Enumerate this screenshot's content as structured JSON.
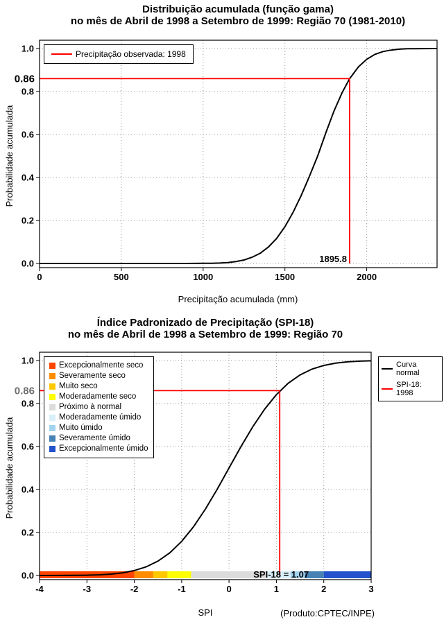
{
  "page": {
    "background": "#FFFFFF"
  },
  "chart_data": [
    {
      "id": "gamma-cdf",
      "type": "line",
      "title": "Distribuição acumulada (função gama)",
      "subtitle": "no mês de Abril de 1998 a Setembro de 1999: Região 70 (1981-2010)",
      "xlabel": "Precipitação acumulada (mm)",
      "ylabel": "Probabilidade acumulada",
      "xlim": [
        0,
        2430
      ],
      "ylim": [
        0,
        1
      ],
      "xticks": [
        0,
        500,
        1000,
        1500,
        2000
      ],
      "yticks": [
        0,
        0.2,
        0.4,
        0.6,
        0.8,
        1
      ],
      "ytick_labels": [
        "0.0",
        "0.2",
        "0.4",
        "0.6",
        "0.8",
        "1.0"
      ],
      "grid": true,
      "legend": {
        "position": "top-left",
        "items": [
          {
            "label": "Precipitação observada: 1998",
            "color": "#FF0000",
            "swatch": "line"
          }
        ]
      },
      "series": [
        {
          "name": "gamma-cdf-curve",
          "color": "#000000",
          "points": [
            [
              0,
              0
            ],
            [
              200,
              0
            ],
            [
              400,
              0
            ],
            [
              600,
              0
            ],
            [
              800,
              0
            ],
            [
              900,
              0
            ],
            [
              1000,
              0.001
            ],
            [
              1050,
              0.001
            ],
            [
              1100,
              0.002
            ],
            [
              1150,
              0.004
            ],
            [
              1200,
              0.009
            ],
            [
              1250,
              0.016
            ],
            [
              1300,
              0.029
            ],
            [
              1350,
              0.048
            ],
            [
              1400,
              0.077
            ],
            [
              1450,
              0.117
            ],
            [
              1500,
              0.171
            ],
            [
              1550,
              0.238
            ],
            [
              1600,
              0.317
            ],
            [
              1650,
              0.406
            ],
            [
              1700,
              0.5
            ],
            [
              1750,
              0.608
            ],
            [
              1800,
              0.709
            ],
            [
              1850,
              0.795
            ],
            [
              1895.8,
              0.86
            ],
            [
              1950,
              0.915
            ],
            [
              2000,
              0.95
            ],
            [
              2050,
              0.973
            ],
            [
              2100,
              0.986
            ],
            [
              2150,
              0.993
            ],
            [
              2200,
              0.997
            ],
            [
              2250,
              0.999
            ],
            [
              2300,
              0.9995
            ],
            [
              2350,
              0.9998
            ],
            [
              2430,
              1
            ]
          ]
        }
      ],
      "annotation": {
        "prob": 0.86,
        "prob_label": "0.86",
        "prob_label_color": "#000000",
        "value": 1895.8,
        "value_label": "1895.8",
        "line_color": "#FF0000"
      }
    },
    {
      "id": "spi-cdf",
      "type": "line",
      "title": "Índice Padronizado de Precipitação (SPI-18)",
      "subtitle": "no mês de Abril de 1998 a Setembro de 1999: Região 70",
      "xlabel": "SPI",
      "ylabel": "Probabilidade acumulada",
      "credit": "(Produto:CPTEC/INPE)",
      "xlim": [
        -4,
        3
      ],
      "ylim": [
        0,
        1
      ],
      "xticks": [
        -4,
        -3,
        -2,
        -1,
        0,
        1,
        2,
        3
      ],
      "yticks": [
        0,
        0.2,
        0.4,
        0.6,
        0.8,
        1
      ],
      "ytick_labels": [
        "0.0",
        "0.2",
        "0.4",
        "0.6",
        "0.8",
        "1.0"
      ],
      "grid": true,
      "categories": [
        {
          "label": "Excepcionalmente seco",
          "color": "#FF4500",
          "from": -4,
          "to": -2
        },
        {
          "label": "Severamente seco",
          "color": "#FF8C00",
          "from": -2,
          "to": -1.6
        },
        {
          "label": "Muito seco",
          "color": "#FFC800",
          "from": -1.6,
          "to": -1.3
        },
        {
          "label": "Moderadamente seco",
          "color": "#FFFF00",
          "from": -1.3,
          "to": -0.8
        },
        {
          "label": "Próximo à normal",
          "color": "#DCDCDC",
          "from": -0.8,
          "to": 0.8
        },
        {
          "label": "Moderadamente úmido",
          "color": "#D8EFFA",
          "from": 0.8,
          "to": 1.3
        },
        {
          "label": "Muito úmido",
          "color": "#A3D3EE",
          "from": 1.3,
          "to": 1.6
        },
        {
          "label": "Severamente úmido",
          "color": "#4682B4",
          "from": 1.6,
          "to": 2
        },
        {
          "label": "Excepcionalmente úmido",
          "color": "#2352CC",
          "from": 2,
          "to": 3
        }
      ],
      "legend2": {
        "position": "top-right",
        "items": [
          {
            "label": "Curva normal",
            "color": "#000000",
            "swatch": "line"
          },
          {
            "label": "SPI-18: 1998",
            "color": "#FF0000",
            "swatch": "line"
          }
        ]
      },
      "series": [
        {
          "name": "normal-cdf-curve",
          "color": "#000000",
          "points": [
            [
              -4,
              0
            ],
            [
              -3.75,
              0.0001
            ],
            [
              -3.5,
              0.0002
            ],
            [
              -3.25,
              0.0006
            ],
            [
              -3,
              0.0013
            ],
            [
              -2.75,
              0.003
            ],
            [
              -2.5,
              0.0062
            ],
            [
              -2.25,
              0.0122
            ],
            [
              -2,
              0.0228
            ],
            [
              -1.75,
              0.0401
            ],
            [
              -1.5,
              0.0668
            ],
            [
              -1.25,
              0.1056
            ],
            [
              -1,
              0.1587
            ],
            [
              -0.75,
              0.2266
            ],
            [
              -0.5,
              0.3085
            ],
            [
              -0.25,
              0.4013
            ],
            [
              0,
              0.5
            ],
            [
              0.25,
              0.5987
            ],
            [
              0.5,
              0.6915
            ],
            [
              0.75,
              0.7734
            ],
            [
              1,
              0.8413
            ],
            [
              1.25,
              0.8944
            ],
            [
              1.5,
              0.9332
            ],
            [
              1.75,
              0.9599
            ],
            [
              2,
              0.9772
            ],
            [
              2.25,
              0.9878
            ],
            [
              2.5,
              0.9938
            ],
            [
              2.75,
              0.997
            ],
            [
              3,
              0.9987
            ]
          ]
        }
      ],
      "annotation": {
        "prob": 0.86,
        "prob_label": "0.86",
        "prob_label_color": "#707070",
        "value": 1.07,
        "bar_label": "SPI-18 = 1.07",
        "line_color": "#FF0000"
      }
    }
  ]
}
